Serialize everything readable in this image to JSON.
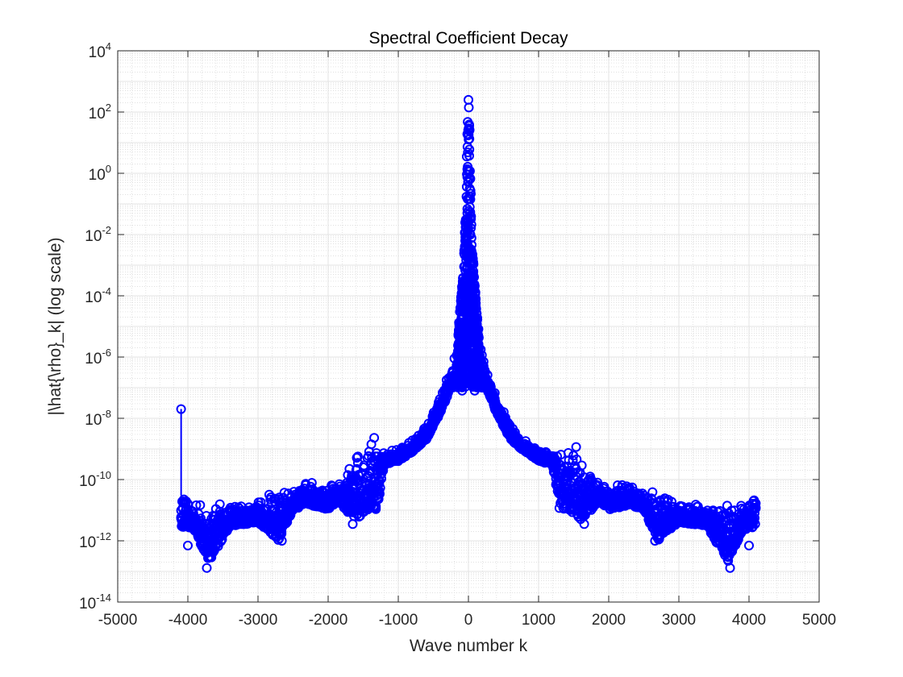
{
  "chart_data": {
    "type": "scatter",
    "title": "Spectral Coefficient Decay",
    "xlabel": "Wave number k",
    "ylabel": "|\\hat{\\rho}_k| (log scale)",
    "xlim": [
      -5000,
      5000
    ],
    "ylim_exponent": [
      -14,
      4
    ],
    "yscale": "log",
    "grid": true,
    "minor_grid": true,
    "marker": "circle",
    "color": "#0000ff",
    "x_ticks": [
      "-5000",
      "-4000",
      "-3000",
      "-2000",
      "-1000",
      "0",
      "1000",
      "2000",
      "3000",
      "4000",
      "5000"
    ],
    "y_ticks": [
      {
        "base": "10",
        "exp": "-14"
      },
      {
        "base": "10",
        "exp": "-12"
      },
      {
        "base": "10",
        "exp": "-10"
      },
      {
        "base": "10",
        "exp": "-8"
      },
      {
        "base": "10",
        "exp": "-6"
      },
      {
        "base": "10",
        "exp": "-4"
      },
      {
        "base": "10",
        "exp": "-2"
      },
      {
        "base": "10",
        "exp": "0"
      },
      {
        "base": "10",
        "exp": "2"
      },
      {
        "base": "10",
        "exp": "4"
      }
    ],
    "envelope": [
      {
        "k": 0,
        "upper": 250,
        "lower": 2e-07
      },
      {
        "k": 15,
        "upper": 60,
        "lower": 5e-07
      },
      {
        "k": 40,
        "upper": 0.05,
        "lower": 1e-07
      },
      {
        "k": 80,
        "upper": 0.0005,
        "lower": 1e-07
      },
      {
        "k": 150,
        "upper": 5e-06,
        "lower": 1e-07
      },
      {
        "k": 250,
        "upper": 5e-07,
        "lower": 1e-07
      },
      {
        "k": 400,
        "upper": 6e-08,
        "lower": 1.5e-08
      },
      {
        "k": 600,
        "upper": 6e-09,
        "lower": 2e-09
      },
      {
        "k": 800,
        "upper": 2e-09,
        "lower": 8e-10
      },
      {
        "k": 1000,
        "upper": 1e-09,
        "lower": 4e-10
      },
      {
        "k": 1200,
        "upper": 8e-10,
        "lower": 3e-10
      },
      {
        "k": 1300,
        "upper": 2e-09,
        "lower": 1e-11
      },
      {
        "k": 1400,
        "upper": 3e-09,
        "lower": 1.2e-11
      },
      {
        "k": 1600,
        "upper": 1e-09,
        "lower": 5e-12
      },
      {
        "k": 1750,
        "upper": 4e-10,
        "lower": 1e-11
      },
      {
        "k": 1850,
        "upper": 1e-10,
        "lower": 2e-11
      },
      {
        "k": 2000,
        "upper": 6e-11,
        "lower": 1e-11
      },
      {
        "k": 2300,
        "upper": 1e-10,
        "lower": 1.5e-11
      },
      {
        "k": 2500,
        "upper": 4e-11,
        "lower": 1e-11
      },
      {
        "k": 2700,
        "upper": 6e-11,
        "lower": 1e-12
      },
      {
        "k": 3000,
        "upper": 2e-11,
        "lower": 4e-12
      },
      {
        "k": 3400,
        "upper": 1.5e-11,
        "lower": 3e-12
      },
      {
        "k": 3700,
        "upper": 2e-11,
        "lower": 2e-13
      },
      {
        "k": 3900,
        "upper": 1.5e-11,
        "lower": 2e-12
      },
      {
        "k": 4096,
        "upper": 5e-11,
        "lower": 3e-12
      }
    ],
    "outlier_points": [
      {
        "k": -4096,
        "y": 2e-08
      },
      {
        "k": -3730,
        "y": 1.3e-13
      },
      {
        "k": 3730,
        "y": 1.3e-13
      },
      {
        "k": -3700,
        "y": 3e-13
      },
      {
        "k": 3700,
        "y": 3e-13
      },
      {
        "k": -2660,
        "y": 1e-12
      },
      {
        "k": 2660,
        "y": 1e-12
      },
      {
        "k": -1650,
        "y": 3.5e-12
      },
      {
        "k": 1650,
        "y": 3.5e-12
      },
      {
        "k": -90,
        "y": 8e-08
      },
      {
        "k": 90,
        "y": 8e-08
      },
      {
        "k": -4000,
        "y": 7e-13
      },
      {
        "k": 4000,
        "y": 7e-13
      },
      {
        "k": -1350,
        "y": 1.2e-11
      },
      {
        "k": 1350,
        "y": 1.2e-11
      },
      {
        "k": 0,
        "y": 250
      }
    ]
  }
}
